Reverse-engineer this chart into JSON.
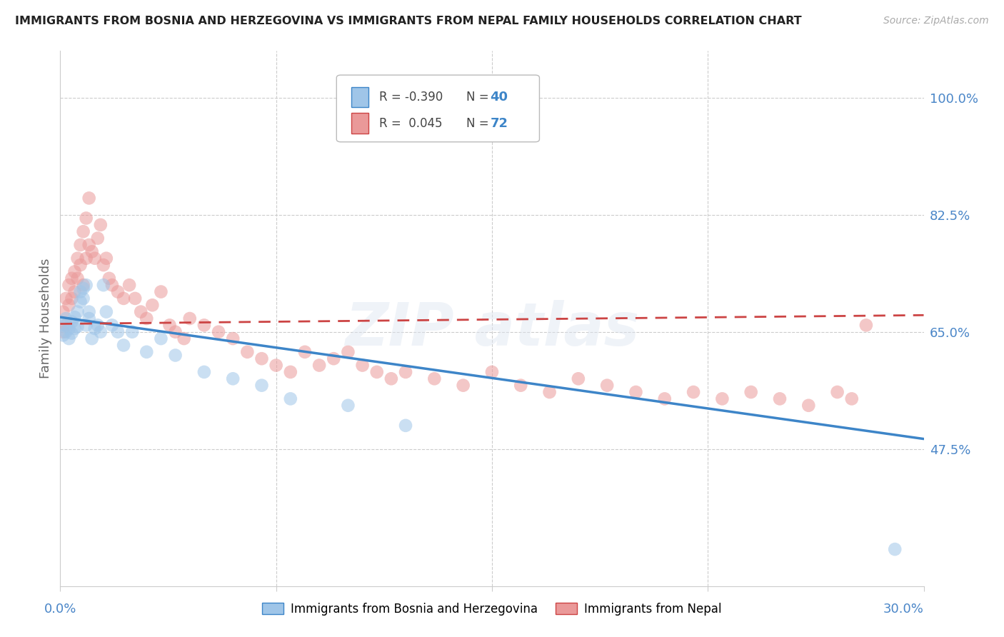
{
  "title": "IMMIGRANTS FROM BOSNIA AND HERZEGOVINA VS IMMIGRANTS FROM NEPAL FAMILY HOUSEHOLDS CORRELATION CHART",
  "source": "Source: ZipAtlas.com",
  "ylabel": "Family Households",
  "yticks": [
    "100.0%",
    "82.5%",
    "65.0%",
    "47.5%"
  ],
  "ytick_values": [
    1.0,
    0.825,
    0.65,
    0.475
  ],
  "xlim": [
    0.0,
    0.3
  ],
  "ylim": [
    0.27,
    1.07
  ],
  "legend_r_bosnia": "-0.390",
  "legend_n_bosnia": "40",
  "legend_r_nepal": "0.045",
  "legend_n_nepal": "72",
  "color_bosnia": "#9fc5e8",
  "color_nepal": "#ea9999",
  "color_bosnia_line": "#3d85c8",
  "color_nepal_line": "#cc4444",
  "bosnia_scatter_x": [
    0.001,
    0.001,
    0.002,
    0.002,
    0.003,
    0.003,
    0.004,
    0.004,
    0.005,
    0.005,
    0.006,
    0.006,
    0.007,
    0.007,
    0.008,
    0.008,
    0.009,
    0.009,
    0.01,
    0.01,
    0.011,
    0.012,
    0.013,
    0.014,
    0.015,
    0.016,
    0.018,
    0.02,
    0.022,
    0.025,
    0.03,
    0.035,
    0.04,
    0.05,
    0.06,
    0.07,
    0.08,
    0.1,
    0.12,
    0.29
  ],
  "bosnia_scatter_y": [
    0.66,
    0.645,
    0.67,
    0.65,
    0.655,
    0.64,
    0.665,
    0.648,
    0.672,
    0.655,
    0.68,
    0.658,
    0.71,
    0.695,
    0.7,
    0.715,
    0.66,
    0.72,
    0.67,
    0.68,
    0.64,
    0.655,
    0.66,
    0.65,
    0.72,
    0.68,
    0.66,
    0.65,
    0.63,
    0.65,
    0.62,
    0.64,
    0.615,
    0.59,
    0.58,
    0.57,
    0.55,
    0.54,
    0.51,
    0.325
  ],
  "nepal_scatter_x": [
    0.001,
    0.001,
    0.002,
    0.002,
    0.003,
    0.003,
    0.004,
    0.004,
    0.005,
    0.005,
    0.006,
    0.006,
    0.007,
    0.007,
    0.008,
    0.008,
    0.009,
    0.009,
    0.01,
    0.01,
    0.011,
    0.012,
    0.013,
    0.014,
    0.015,
    0.016,
    0.017,
    0.018,
    0.02,
    0.022,
    0.024,
    0.026,
    0.028,
    0.03,
    0.032,
    0.035,
    0.038,
    0.04,
    0.043,
    0.045,
    0.05,
    0.055,
    0.06,
    0.065,
    0.07,
    0.075,
    0.08,
    0.085,
    0.09,
    0.095,
    0.1,
    0.105,
    0.11,
    0.115,
    0.12,
    0.13,
    0.14,
    0.15,
    0.16,
    0.17,
    0.18,
    0.19,
    0.2,
    0.21,
    0.22,
    0.23,
    0.24,
    0.25,
    0.26,
    0.27,
    0.275,
    0.28
  ],
  "nepal_scatter_y": [
    0.65,
    0.68,
    0.7,
    0.66,
    0.72,
    0.69,
    0.73,
    0.7,
    0.74,
    0.71,
    0.76,
    0.73,
    0.78,
    0.75,
    0.72,
    0.8,
    0.76,
    0.82,
    0.85,
    0.78,
    0.77,
    0.76,
    0.79,
    0.81,
    0.75,
    0.76,
    0.73,
    0.72,
    0.71,
    0.7,
    0.72,
    0.7,
    0.68,
    0.67,
    0.69,
    0.71,
    0.66,
    0.65,
    0.64,
    0.67,
    0.66,
    0.65,
    0.64,
    0.62,
    0.61,
    0.6,
    0.59,
    0.62,
    0.6,
    0.61,
    0.62,
    0.6,
    0.59,
    0.58,
    0.59,
    0.58,
    0.57,
    0.59,
    0.57,
    0.56,
    0.58,
    0.57,
    0.56,
    0.55,
    0.56,
    0.55,
    0.56,
    0.55,
    0.54,
    0.56,
    0.55,
    0.66
  ],
  "bosnia_line_x": [
    0.0,
    0.3
  ],
  "bosnia_line_y": [
    0.672,
    0.49
  ],
  "nepal_line_x": [
    0.0,
    0.3
  ],
  "nepal_line_y": [
    0.662,
    0.675
  ]
}
